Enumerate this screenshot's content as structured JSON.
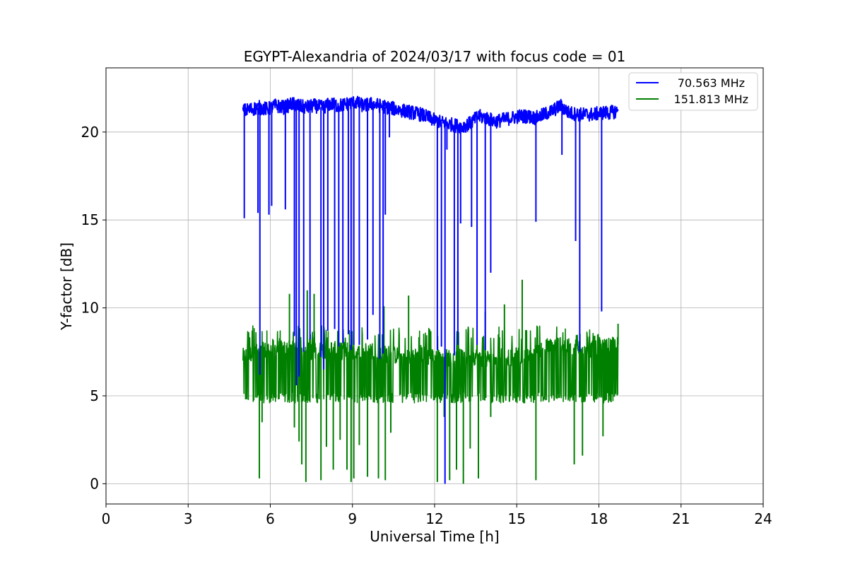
{
  "chart_data": {
    "type": "line",
    "title": "EGYPT-Alexandria of 2024/03/17 with focus code = 01",
    "xlabel": "Universal Time [h]",
    "ylabel": "Y-factor [dB]",
    "xlim": [
      0,
      24
    ],
    "ylim": [
      -1.15,
      23.65
    ],
    "xticks": [
      0,
      3,
      6,
      9,
      12,
      15,
      18,
      21,
      24
    ],
    "xtick_labels": [
      "0",
      "3",
      "6",
      "9",
      "12",
      "15",
      "18",
      "21",
      "24"
    ],
    "yticks": [
      0,
      5,
      10,
      15,
      20
    ],
    "ytick_labels": [
      "0",
      "5",
      "10",
      "15",
      "20"
    ],
    "grid": true,
    "legend_position": "top-right",
    "series": [
      {
        "name": "70.563 MHz",
        "color": "#0000ff",
        "x": [
          5.0,
          5.3,
          5.6,
          5.9,
          6.2,
          6.5,
          6.8,
          7.0,
          7.3,
          7.6,
          7.9,
          8.2,
          8.5,
          8.8,
          9.1,
          9.4,
          9.7,
          10.0,
          10.3,
          10.6,
          10.9,
          11.2,
          11.5,
          11.8,
          12.1,
          12.4,
          12.7,
          13.0,
          13.3,
          13.6,
          13.9,
          14.2,
          14.5,
          14.8,
          15.1,
          15.4,
          15.7,
          16.0,
          16.3,
          16.6,
          16.9,
          17.2,
          17.5,
          17.8,
          18.1,
          18.4,
          18.7
        ],
        "y": [
          21.2,
          21.3,
          21.4,
          21.3,
          21.5,
          21.4,
          21.6,
          21.5,
          21.4,
          21.5,
          21.4,
          21.6,
          21.5,
          21.6,
          21.7,
          21.5,
          21.6,
          21.5,
          21.4,
          21.3,
          21.2,
          21.1,
          21.0,
          20.8,
          20.6,
          20.5,
          20.4,
          20.3,
          20.5,
          20.9,
          20.8,
          20.6,
          20.7,
          20.8,
          20.9,
          20.9,
          20.8,
          21.0,
          21.2,
          21.5,
          21.1,
          21.0,
          21.0,
          21.0,
          21.1,
          21.1,
          21.2
        ],
        "spikes": [
          {
            "x": 5.05,
            "y": 15.1
          },
          {
            "x": 5.55,
            "y": 15.4
          },
          {
            "x": 5.62,
            "y": 6.2
          },
          {
            "x": 5.95,
            "y": 15.3
          },
          {
            "x": 6.05,
            "y": 15.8
          },
          {
            "x": 6.55,
            "y": 15.6
          },
          {
            "x": 6.88,
            "y": 8.4
          },
          {
            "x": 6.95,
            "y": 5.6
          },
          {
            "x": 7.05,
            "y": 6.1
          },
          {
            "x": 7.22,
            "y": 7.5
          },
          {
            "x": 7.45,
            "y": 8.2
          },
          {
            "x": 7.85,
            "y": 7.2
          },
          {
            "x": 7.95,
            "y": 6.5
          },
          {
            "x": 8.1,
            "y": 8.7
          },
          {
            "x": 8.35,
            "y": 8.8
          },
          {
            "x": 8.5,
            "y": 7.8
          },
          {
            "x": 8.65,
            "y": 8.0
          },
          {
            "x": 8.85,
            "y": 8.5
          },
          {
            "x": 8.95,
            "y": 7.6
          },
          {
            "x": 9.05,
            "y": 7.9
          },
          {
            "x": 9.25,
            "y": 7.9
          },
          {
            "x": 9.55,
            "y": 8.2
          },
          {
            "x": 9.75,
            "y": 9.6
          },
          {
            "x": 10.0,
            "y": 7.1
          },
          {
            "x": 10.12,
            "y": 7.4
          },
          {
            "x": 10.2,
            "y": 15.3
          },
          {
            "x": 10.35,
            "y": 19.7
          },
          {
            "x": 12.1,
            "y": 7.6
          },
          {
            "x": 12.25,
            "y": 7.8
          },
          {
            "x": 12.38,
            "y": 0.0
          },
          {
            "x": 12.45,
            "y": 19.0
          },
          {
            "x": 12.72,
            "y": 7.3
          },
          {
            "x": 12.85,
            "y": 7.9
          },
          {
            "x": 12.95,
            "y": 14.8
          },
          {
            "x": 13.35,
            "y": 14.6
          },
          {
            "x": 13.55,
            "y": 7.9
          },
          {
            "x": 13.85,
            "y": 7.6
          },
          {
            "x": 14.05,
            "y": 12.0
          },
          {
            "x": 15.7,
            "y": 14.9
          },
          {
            "x": 16.65,
            "y": 18.7
          },
          {
            "x": 17.15,
            "y": 13.8
          },
          {
            "x": 17.3,
            "y": 7.5
          },
          {
            "x": 18.1,
            "y": 9.8
          }
        ]
      },
      {
        "name": "151.813 MHz",
        "color": "#008000",
        "x": [
          5.0,
          5.3,
          5.6,
          5.9,
          6.2,
          6.5,
          6.8,
          7.0,
          7.3,
          7.6,
          7.9,
          8.2,
          8.5,
          8.8,
          9.1,
          9.4,
          9.7,
          10.0,
          10.3,
          10.6,
          10.9,
          11.2,
          11.5,
          11.8,
          12.1,
          12.4,
          12.7,
          13.0,
          13.3,
          13.6,
          13.9,
          14.2,
          14.5,
          14.8,
          15.1,
          15.4,
          15.7,
          16.0,
          16.3,
          16.6,
          16.9,
          17.2,
          17.5,
          17.8,
          18.1,
          18.4,
          18.7
        ],
        "y": [
          7.2,
          7.4,
          7.5,
          7.6,
          7.7,
          7.6,
          7.8,
          7.7,
          7.6,
          7.5,
          7.6,
          7.7,
          7.5,
          7.6,
          7.4,
          7.5,
          7.6,
          7.3,
          7.4,
          7.3,
          7.2,
          7.3,
          7.4,
          7.2,
          7.3,
          7.2,
          7.1,
          7.2,
          7.3,
          7.2,
          7.1,
          7.3,
          7.3,
          7.2,
          7.3,
          7.2,
          7.4,
          7.7,
          7.8,
          8.0,
          7.8,
          7.7,
          7.8,
          7.6,
          7.7,
          7.8,
          7.9
        ],
        "noise_band": [
          4.6,
          9.0
        ],
        "spikes": [
          {
            "x": 5.1,
            "y": 4.8
          },
          {
            "x": 5.6,
            "y": 0.3
          },
          {
            "x": 5.7,
            "y": 3.5
          },
          {
            "x": 6.3,
            "y": 4.8
          },
          {
            "x": 6.7,
            "y": 10.8
          },
          {
            "x": 6.88,
            "y": 3.2
          },
          {
            "x": 7.05,
            "y": 2.4
          },
          {
            "x": 7.15,
            "y": 1.1
          },
          {
            "x": 7.3,
            "y": 0.1
          },
          {
            "x": 7.35,
            "y": 11.0
          },
          {
            "x": 7.6,
            "y": 10.8
          },
          {
            "x": 7.85,
            "y": 0.2
          },
          {
            "x": 8.05,
            "y": 2.1
          },
          {
            "x": 8.3,
            "y": 0.8
          },
          {
            "x": 8.55,
            "y": 2.5
          },
          {
            "x": 8.8,
            "y": 0.8
          },
          {
            "x": 8.95,
            "y": 0.1
          },
          {
            "x": 9.05,
            "y": 0.3
          },
          {
            "x": 9.25,
            "y": 2.2
          },
          {
            "x": 9.55,
            "y": 0.4
          },
          {
            "x": 9.95,
            "y": 0.3
          },
          {
            "x": 10.15,
            "y": 10.1
          },
          {
            "x": 10.4,
            "y": 2.9
          },
          {
            "x": 10.2,
            "y": 0.2
          },
          {
            "x": 11.05,
            "y": 10.7
          },
          {
            "x": 12.1,
            "y": 0.1
          },
          {
            "x": 12.35,
            "y": 3.8
          },
          {
            "x": 12.55,
            "y": 0.2
          },
          {
            "x": 12.8,
            "y": 0.8
          },
          {
            "x": 13.05,
            "y": 0.0
          },
          {
            "x": 13.3,
            "y": 2.0
          },
          {
            "x": 13.6,
            "y": 0.3
          },
          {
            "x": 13.85,
            "y": 9.8
          },
          {
            "x": 14.05,
            "y": 3.8
          },
          {
            "x": 14.55,
            "y": 10.2
          },
          {
            "x": 15.2,
            "y": 11.6
          },
          {
            "x": 15.7,
            "y": 0.2
          },
          {
            "x": 17.1,
            "y": 1.1
          },
          {
            "x": 17.4,
            "y": 1.6
          },
          {
            "x": 18.15,
            "y": 2.7
          },
          {
            "x": 18.7,
            "y": 9.1
          }
        ]
      }
    ]
  }
}
